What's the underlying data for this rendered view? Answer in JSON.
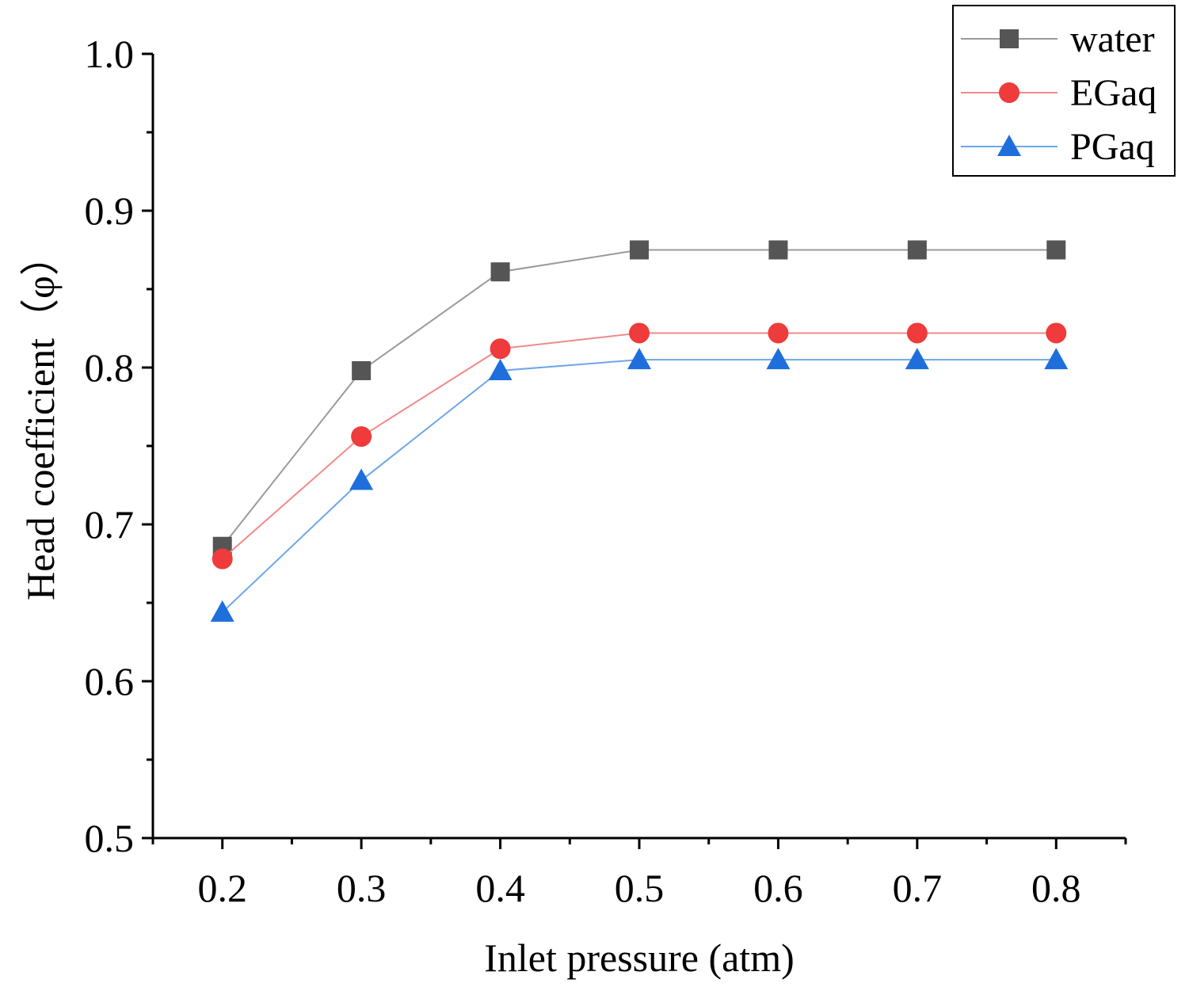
{
  "chart_data": {
    "type": "line",
    "xlabel": "Inlet pressure (atm)",
    "ylabel": "Head coefficient（φ）",
    "x": [
      0.2,
      0.3,
      0.4,
      0.5,
      0.6,
      0.7,
      0.8
    ],
    "x_tick_labels": [
      "0.2",
      "0.3",
      "0.4",
      "0.5",
      "0.6",
      "0.7",
      "0.8"
    ],
    "y_tick_labels": [
      "0.5",
      "0.6",
      "0.7",
      "0.8",
      "0.9",
      "1.0"
    ],
    "xlim": [
      0.15,
      0.85
    ],
    "ylim": [
      0.5,
      1.0
    ],
    "grid": false,
    "legend_position": "top-right",
    "series": [
      {
        "name": "water",
        "marker": "square",
        "color": "#555555",
        "line_color": "#9a9a9a",
        "values": [
          0.686,
          0.798,
          0.861,
          0.875,
          0.875,
          0.875,
          0.875
        ]
      },
      {
        "name": "EGaq",
        "marker": "circle",
        "color": "#ef3b3b",
        "line_color": "#f08a8a",
        "values": [
          0.678,
          0.756,
          0.812,
          0.822,
          0.822,
          0.822,
          0.822
        ]
      },
      {
        "name": "PGaq",
        "marker": "triangle",
        "color": "#1e6fdc",
        "line_color": "#6fa6ea",
        "values": [
          0.644,
          0.728,
          0.798,
          0.805,
          0.805,
          0.805,
          0.805
        ]
      }
    ]
  }
}
